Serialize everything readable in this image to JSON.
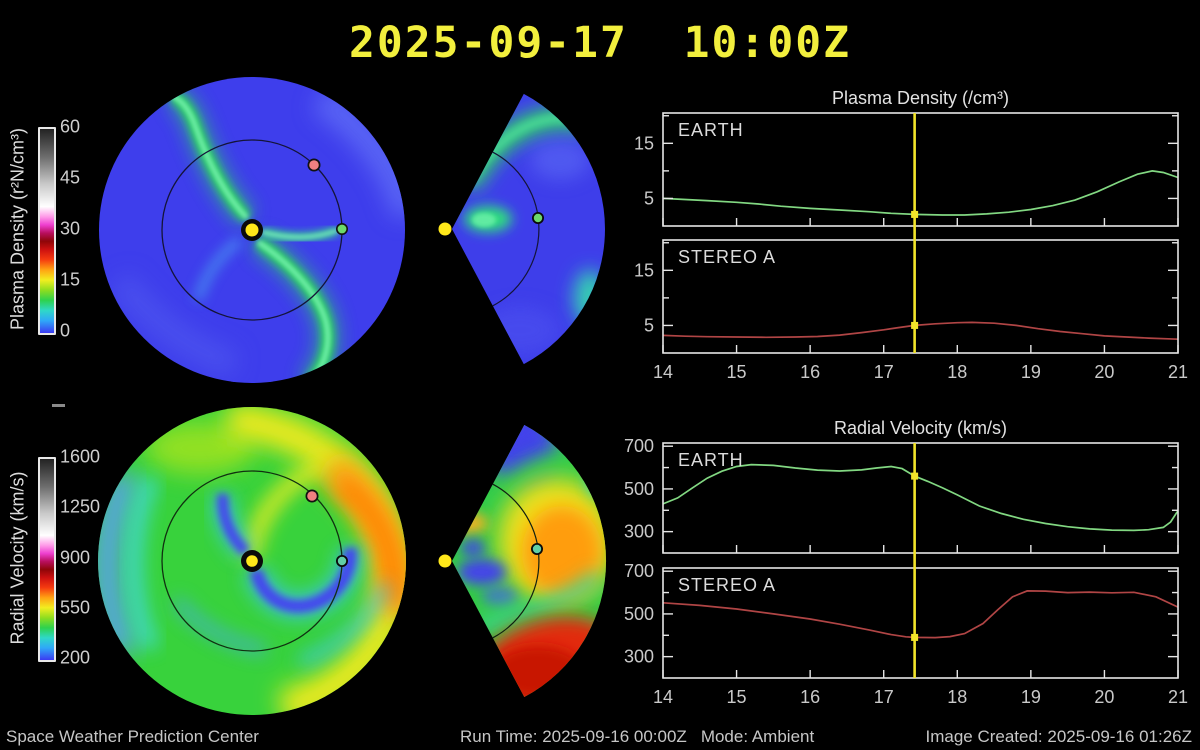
{
  "title": "2025-09-17  10:00Z",
  "colorbars": {
    "density": {
      "label": "Plasma Density (r²N/cm³)",
      "ticks": [
        "60",
        "45",
        "30",
        "15",
        "0"
      ]
    },
    "velocity": {
      "label": "Radial Velocity (km/s)",
      "ticks": [
        "1600",
        "1250",
        "900",
        "550",
        "200"
      ]
    }
  },
  "maps": {
    "sun_color": "#ffe81a",
    "earth_dot_color": "#6cd96c",
    "earth_dot_color_velocity": "#62cfa6",
    "stereo_a_dot_color": "#f08080",
    "density_background": "#3e3eec",
    "velocity_background": "#38d23c"
  },
  "chart_data": [
    {
      "type": "line",
      "title": "Plasma Density (/cm³)",
      "xlim": [
        14,
        21
      ],
      "xticks": [
        14,
        15,
        16,
        17,
        18,
        19,
        20,
        21
      ],
      "ylim": [
        0,
        20.5
      ],
      "yticks": [
        {
          "v": 5,
          "label": "5"
        },
        {
          "v": 10
        },
        {
          "v": 15,
          "label": "15"
        },
        {
          "v": 20
        }
      ],
      "marker_x": 17.42,
      "series": [
        {
          "name": "EARTH",
          "color": "#82d882",
          "marker_y": 2.1,
          "x": [
            14,
            14.3,
            14.6,
            15,
            15.3,
            15.6,
            16,
            16.4,
            16.8,
            17.1,
            17.42,
            17.8,
            18.1,
            18.4,
            18.7,
            19,
            19.3,
            19.6,
            19.9,
            20.2,
            20.45,
            20.65,
            20.8,
            21
          ],
          "y": [
            5.0,
            4.8,
            4.6,
            4.3,
            4.0,
            3.6,
            3.2,
            2.9,
            2.6,
            2.3,
            2.1,
            2.0,
            2.0,
            2.2,
            2.5,
            3.0,
            3.7,
            4.7,
            6.2,
            8.0,
            9.4,
            10.0,
            9.7,
            8.8
          ]
        },
        {
          "name": "STEREO A",
          "color": "#b04545",
          "marker_y": 5.0,
          "x": [
            14,
            14.3,
            14.6,
            15,
            15.4,
            15.8,
            16.1,
            16.4,
            16.7,
            17,
            17.2,
            17.42,
            17.7,
            18,
            18.2,
            18.5,
            18.8,
            19.1,
            19.4,
            19.7,
            20,
            20.3,
            20.6,
            21
          ],
          "y": [
            3.2,
            3.05,
            2.95,
            2.9,
            2.85,
            2.9,
            3.0,
            3.25,
            3.7,
            4.2,
            4.6,
            5.0,
            5.3,
            5.5,
            5.55,
            5.4,
            5.0,
            4.4,
            3.9,
            3.5,
            3.1,
            2.9,
            2.7,
            2.5
          ]
        }
      ]
    },
    {
      "type": "line",
      "title": "Radial Velocity (km/s)",
      "xlim": [
        14,
        21
      ],
      "xticks": [
        14,
        15,
        16,
        17,
        18,
        19,
        20,
        21
      ],
      "ylim": [
        200,
        715
      ],
      "yticks": [
        {
          "v": 300,
          "label": "300"
        },
        {
          "v": 400
        },
        {
          "v": 500,
          "label": "500"
        },
        {
          "v": 600
        },
        {
          "v": 700,
          "label": "700"
        }
      ],
      "marker_x": 17.42,
      "series": [
        {
          "name": "EARTH",
          "color": "#82d882",
          "marker_y": 560,
          "x": [
            14,
            14.2,
            14.4,
            14.6,
            14.8,
            15,
            15.2,
            15.5,
            15.8,
            16.1,
            16.4,
            16.7,
            16.9,
            17.1,
            17.25,
            17.42,
            17.6,
            17.8,
            18,
            18.3,
            18.6,
            18.9,
            19.2,
            19.5,
            19.8,
            20.1,
            20.4,
            20.6,
            20.8,
            20.9,
            21
          ],
          "y": [
            430,
            458,
            505,
            550,
            583,
            605,
            614,
            610,
            598,
            588,
            584,
            589,
            598,
            605,
            595,
            560,
            535,
            505,
            472,
            420,
            385,
            358,
            338,
            323,
            313,
            307,
            306,
            309,
            320,
            345,
            398
          ]
        },
        {
          "name": "STEREO A",
          "color": "#b04545",
          "marker_y": 390,
          "x": [
            14,
            14.5,
            15,
            15.5,
            16,
            16.4,
            16.8,
            17.1,
            17.3,
            17.42,
            17.7,
            17.9,
            18.1,
            18.35,
            18.55,
            18.75,
            18.95,
            19.2,
            19.5,
            19.8,
            20.1,
            20.4,
            20.7,
            21
          ],
          "y": [
            552,
            540,
            523,
            500,
            476,
            452,
            425,
            403,
            393,
            390,
            389,
            394,
            408,
            455,
            520,
            580,
            608,
            607,
            600,
            602,
            599,
            601,
            580,
            532
          ]
        }
      ]
    }
  ],
  "footer": {
    "left": "Space Weather Prediction Center",
    "run_time": "Run Time: 2025-09-16 00:00Z",
    "mode": "Mode: Ambient",
    "created": "Image Created: 2025-09-16 01:26Z"
  },
  "colors": {
    "title": "#f2ef3d",
    "marker": "#f2e42a",
    "frame": "#e6e6e6",
    "axis_text": "#c9c9c9",
    "footer_text": "#c6c6c6"
  }
}
